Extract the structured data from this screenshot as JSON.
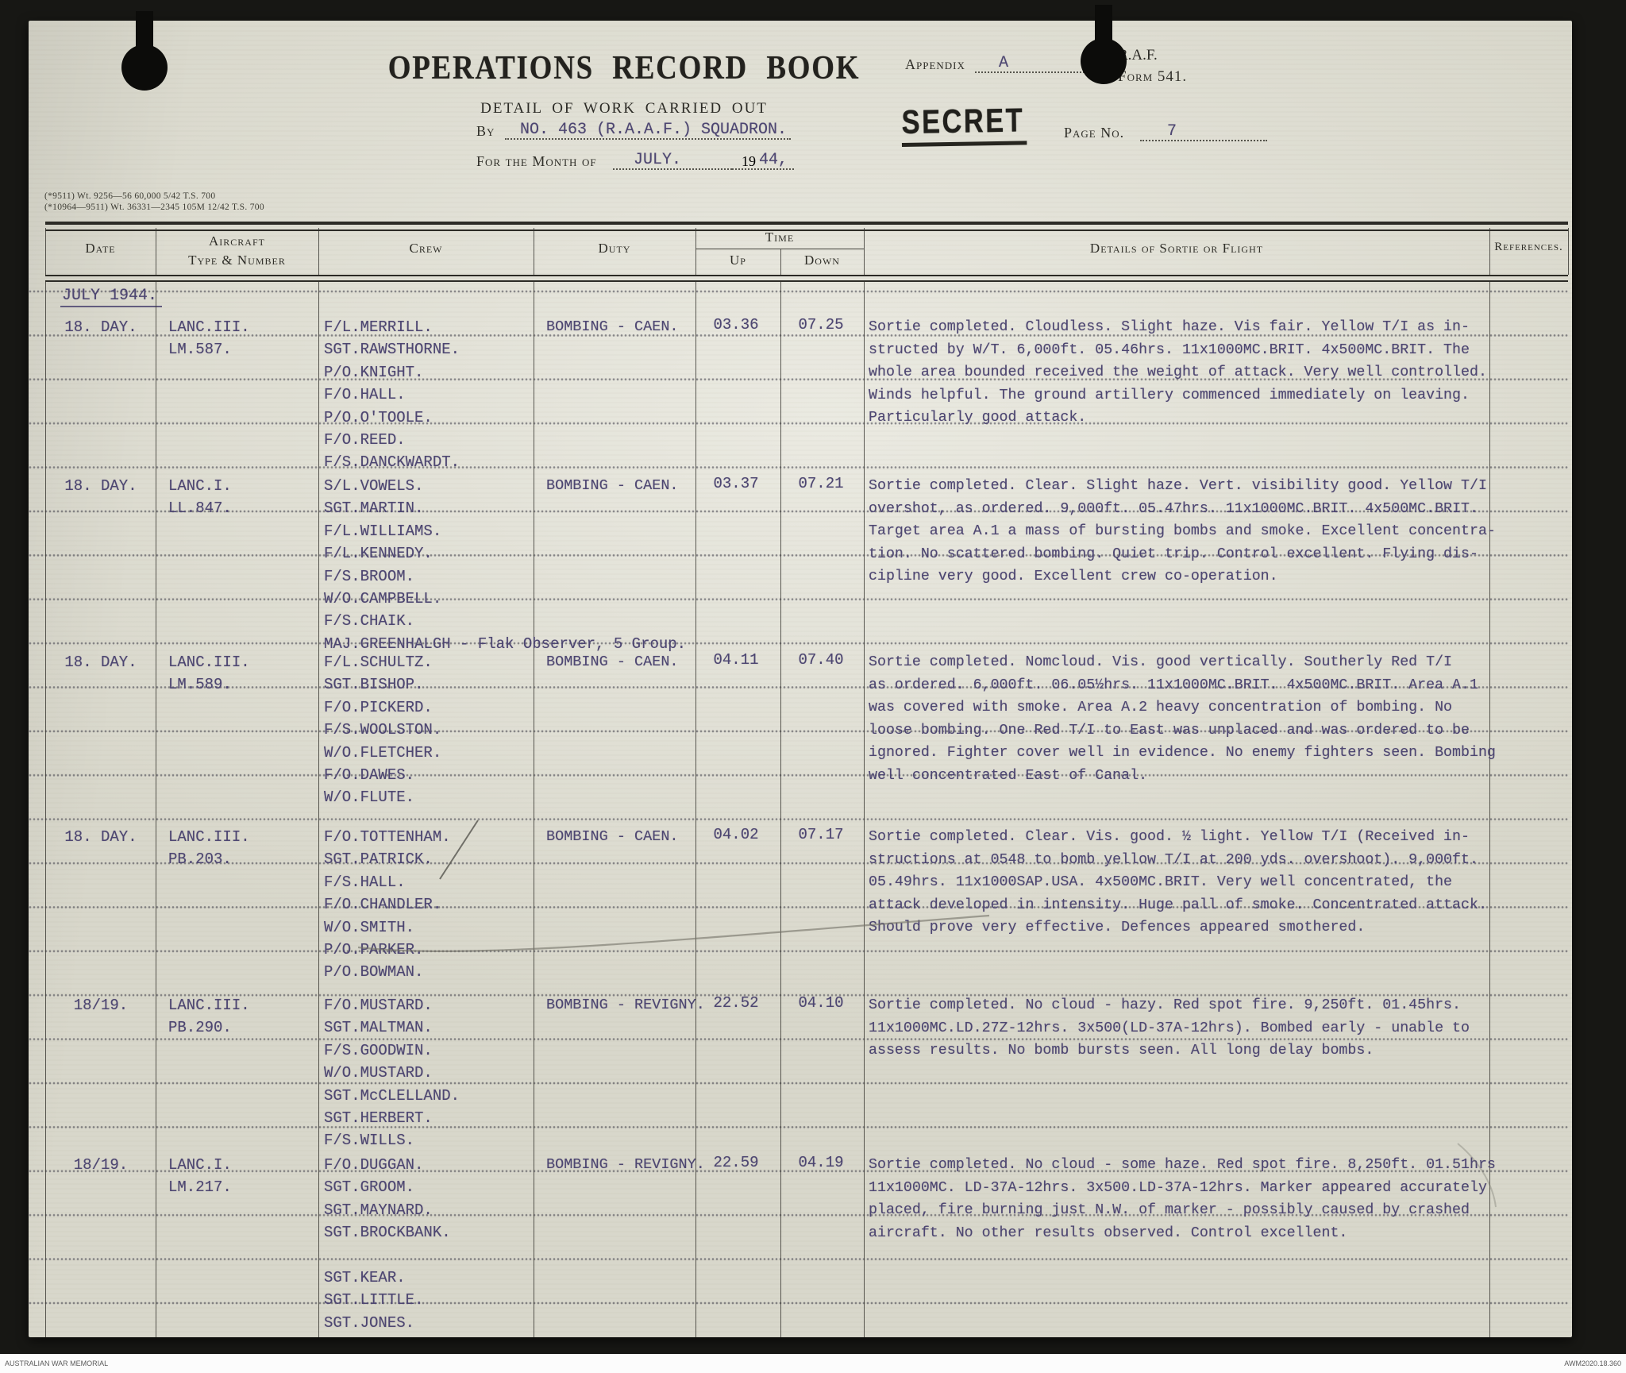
{
  "colors": {
    "paper": "#e2e1d5",
    "typewriter_ink": "#4d4671",
    "print_ink": "#2c2b26",
    "stamp_ink": "#21201c"
  },
  "archive": {
    "left": "AUSTRALIAN WAR MEMORIAL",
    "right": "AWM2020.18.360"
  },
  "form": {
    "title": "OPERATIONS RECORD BOOK",
    "subtitle": "DETAIL OF WORK CARRIED OUT",
    "by_label": "By",
    "by_value": "NO. 463 (R.A.A.F.) SQUADRON.",
    "month_label": "For the Month of",
    "month_value": "JULY.",
    "year_printed": "19",
    "year_typed": "44,",
    "appendix_label": "Appendix",
    "appendix_value": "A",
    "raf_line1": "R.A.F.",
    "raf_line2": "Form 541.",
    "secret_stamp": "SECRET",
    "page_label": "Page No.",
    "page_value": "7",
    "print_codes": [
      "(*9511)  Wt. 9256—56  60,000  5/42  T.S.  700",
      "(*10964—9511)  Wt. 36331—2345  105M  12/42  T.S.  700"
    ]
  },
  "table": {
    "headers": {
      "date": "Date",
      "aircraft": [
        "Aircraft",
        "Type & Number"
      ],
      "crew": "Crew",
      "duty": "Duty",
      "time": "Time",
      "up": "Up",
      "down": "Down",
      "details": "Details of Sortie or Flight",
      "references": "References."
    },
    "month_row": "JULY 1944.",
    "rows": [
      {
        "date": "18. DAY.",
        "aircraft": [
          "LANC.III.",
          "LM.587."
        ],
        "crew": [
          "F/L.MERRILL.",
          "SGT.RAWSTHORNE.",
          "P/O.KNIGHT.",
          "F/O.HALL.",
          "P/O.O'TOOLE.",
          "F/O.REED.",
          "F/S.DANCKWARDT."
        ],
        "duty": "BOMBING - CAEN.",
        "up": "03.36",
        "down": "07.25",
        "details": [
          "Sortie completed. Cloudless. Slight haze. Vis fair. Yellow T/I as in-",
          "structed by W/T. 6,000ft. 05.46hrs. 11x1000MC.BRIT. 4x500MC.BRIT. The",
          "whole area bounded received the weight of attack. Very well controlled.",
          "Winds helpful. The ground artillery commenced immediately on leaving.",
          "Particularly good attack."
        ]
      },
      {
        "date": "18. DAY.",
        "aircraft": [
          "LANC.I.",
          "LL.847."
        ],
        "crew": [
          "S/L.VOWELS.",
          "SGT.MARTIN.",
          "F/L.WILLIAMS.",
          "F/L.KENNEDY.",
          "F/S.BROOM.",
          "W/O.CAMPBELL.",
          "F/S.CHAIK.",
          "MAJ.GREENHALGH - Flak Observer, 5 Group."
        ],
        "duty": "BOMBING - CAEN.",
        "up": "03.37",
        "down": "07.21",
        "details": [
          "Sortie completed. Clear. Slight haze. Vert. visibility good. Yellow T/I",
          "overshot, as ordered. 9,000ft. 05.47hrs. 11x1000MC.BRIT. 4x500MC.BRIT.",
          "Target area A.1 a mass of bursting bombs and smoke. Excellent concentra-",
          "tion. No scattered bombing. Quiet trip. Control excellent. Flying dis-",
          "cipline very good. Excellent crew co-operation."
        ]
      },
      {
        "date": "18. DAY.",
        "aircraft": [
          "LANC.III.",
          "LM.589."
        ],
        "crew": [
          "F/L.SCHULTZ.",
          "SGT.BISHOP.",
          "F/O.PICKERD.",
          "F/S.WOOLSTON.",
          "W/O.FLETCHER.",
          "F/O.DAWES.",
          "W/O.FLUTE."
        ],
        "duty": "BOMBING - CAEN.",
        "up": "04.11",
        "down": "07.40",
        "details": [
          "Sortie completed. Nomcloud. Vis. good vertically. Southerly Red T/I",
          "as ordered. 6,000ft. 06.05½hrs. 11x1000MC.BRIT. 4x500MC.BRIT. Area A.1",
          "was covered with smoke. Area A.2 heavy concentration of bombing. No",
          "loose bombing. One Red T/I to East was unplaced and was ordered to be",
          "ignored. Fighter cover well in evidence. No enemy fighters seen. Bombing",
          "well concentrated East of Canal."
        ]
      },
      {
        "date": "18. DAY.",
        "aircraft": [
          "LANC.III.",
          "PB.203."
        ],
        "crew": [
          "F/O.TOTTENHAM.",
          "SGT.PATRICK.",
          "F/S.HALL.",
          "F/O.CHANDLER.",
          "W/O.SMITH.",
          "P/O.PARKER.",
          "P/O.BOWMAN."
        ],
        "duty": "BOMBING - CAEN.",
        "up": "04.02",
        "down": "07.17",
        "details": [
          "Sortie completed. Clear. Vis. good. ½ light. Yellow T/I (Received in-",
          "structions at 0548 to bomb yellow T/I at 200 yds. overshoot). 9,000ft.",
          "05.49hrs. 11x1000SAP.USA. 4x500MC.BRIT. Very well concentrated, the",
          "attack developed in intensity. Huge pall of smoke. Concentrated attack.",
          "Should prove very effective. Defences appeared smothered."
        ]
      },
      {
        "date": "18/19.",
        "aircraft": [
          "LANC.III.",
          "PB.290."
        ],
        "crew": [
          "F/O.MUSTARD.",
          "SGT.MALTMAN.",
          "F/S.GOODWIN.",
          "W/O.MUSTARD.",
          "SGT.McCLELLAND.",
          "SGT.HERBERT.",
          "F/S.WILLS."
        ],
        "duty": "BOMBING - REVIGNY.",
        "up": "22.52",
        "down": "04.10",
        "details": [
          "Sortie completed. No cloud - hazy. Red spot fire. 9,250ft. 01.45hrs.",
          "11x1000MC.LD.27Z-12hrs. 3x500(LD-37A-12hrs). Bombed early - unable to",
          "assess results. No bomb bursts seen. All long delay bombs."
        ]
      },
      {
        "date": "18/19.",
        "aircraft": [
          "LANC.I.",
          "LM.217."
        ],
        "crew": [
          "F/O.DUGGAN.",
          "SGT.GROOM.",
          "SGT.MAYNARD.",
          "SGT.BROCKBANK.",
          "",
          "SGT.KEAR.",
          "SGT.LITTLE.",
          "SGT.JONES."
        ],
        "duty": "BOMBING - REVIGNY.",
        "up": "22.59",
        "down": "04.19",
        "details": [
          "Sortie completed. No cloud - some haze. Red spot fire. 8,250ft. 01.51hrs",
          "11x1000MC. LD-37A-12hrs. 3x500.LD-37A-12hrs. Marker appeared accurately",
          "placed, fire burning just N.W. of marker - possibly caused by crashed",
          "aircraft. No other results observed. Control excellent."
        ]
      }
    ]
  }
}
